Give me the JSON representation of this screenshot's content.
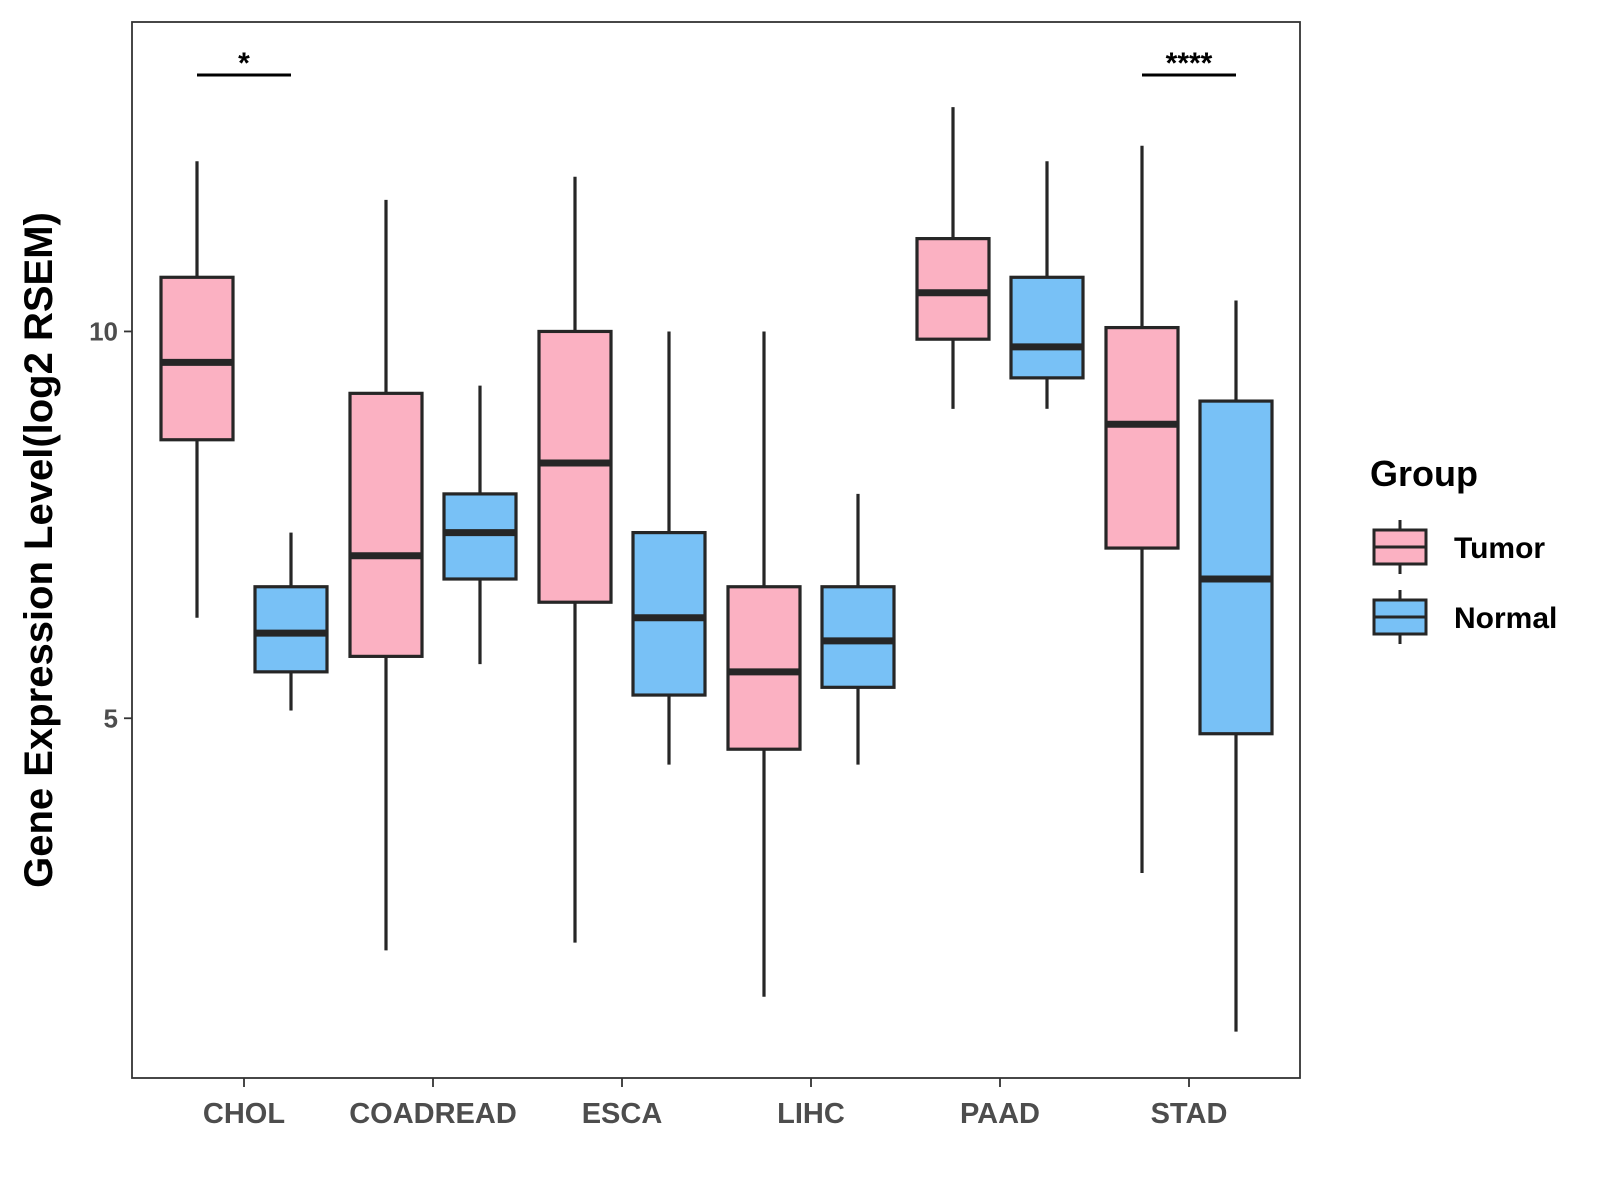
{
  "chart_data": {
    "type": "boxplot",
    "ylabel": "Gene Expression Level(log2 RSEM)",
    "xlabel": "",
    "ylim": [
      0.35,
      14.0
    ],
    "yticks": [
      5,
      10
    ],
    "grid": false,
    "legend": {
      "title": "Group",
      "placement": "right",
      "entries": [
        {
          "name": "Tumor",
          "color": "#FBB1C2"
        },
        {
          "name": "Normal",
          "color": "#78C1F6"
        }
      ]
    },
    "categories": [
      "CHOL",
      "COADREAD",
      "ESCA",
      "LIHC",
      "PAAD",
      "STAD"
    ],
    "series": [
      {
        "name": "Tumor",
        "color": "#FBB1C2",
        "boxes": [
          {
            "whisker_low": 6.3,
            "q1": 8.6,
            "median": 9.6,
            "q3": 10.7,
            "whisker_high": 12.2
          },
          {
            "whisker_low": 2.0,
            "q1": 5.8,
            "median": 7.1,
            "q3": 9.2,
            "whisker_high": 11.7
          },
          {
            "whisker_low": 2.1,
            "q1": 6.5,
            "median": 8.3,
            "q3": 10.0,
            "whisker_high": 12.0
          },
          {
            "whisker_low": 1.4,
            "q1": 4.6,
            "median": 5.6,
            "q3": 6.7,
            "whisker_high": 10.0
          },
          {
            "whisker_low": 9.0,
            "q1": 9.9,
            "median": 10.5,
            "q3": 11.2,
            "whisker_high": 12.9
          },
          {
            "whisker_low": 3.0,
            "q1": 7.2,
            "median": 8.8,
            "q3": 10.05,
            "whisker_high": 12.4
          }
        ]
      },
      {
        "name": "Normal",
        "color": "#78C1F6",
        "boxes": [
          {
            "whisker_low": 5.1,
            "q1": 5.6,
            "median": 6.1,
            "q3": 6.7,
            "whisker_high": 7.4
          },
          {
            "whisker_low": 5.7,
            "q1": 6.8,
            "median": 7.4,
            "q3": 7.9,
            "whisker_high": 9.3
          },
          {
            "whisker_low": 4.4,
            "q1": 5.3,
            "median": 6.3,
            "q3": 7.4,
            "whisker_high": 10.0
          },
          {
            "whisker_low": 4.4,
            "q1": 5.4,
            "median": 6.0,
            "q3": 6.7,
            "whisker_high": 7.9
          },
          {
            "whisker_low": 9.0,
            "q1": 9.4,
            "median": 9.8,
            "q3": 10.7,
            "whisker_high": 12.2
          },
          {
            "whisker_low": 0.95,
            "q1": 4.8,
            "median": 6.8,
            "q3": 9.1,
            "whisker_high": 10.4
          }
        ]
      }
    ],
    "annotations": [
      {
        "category": "CHOL",
        "label": "*"
      },
      {
        "category": "STAD",
        "label": "****"
      }
    ]
  }
}
